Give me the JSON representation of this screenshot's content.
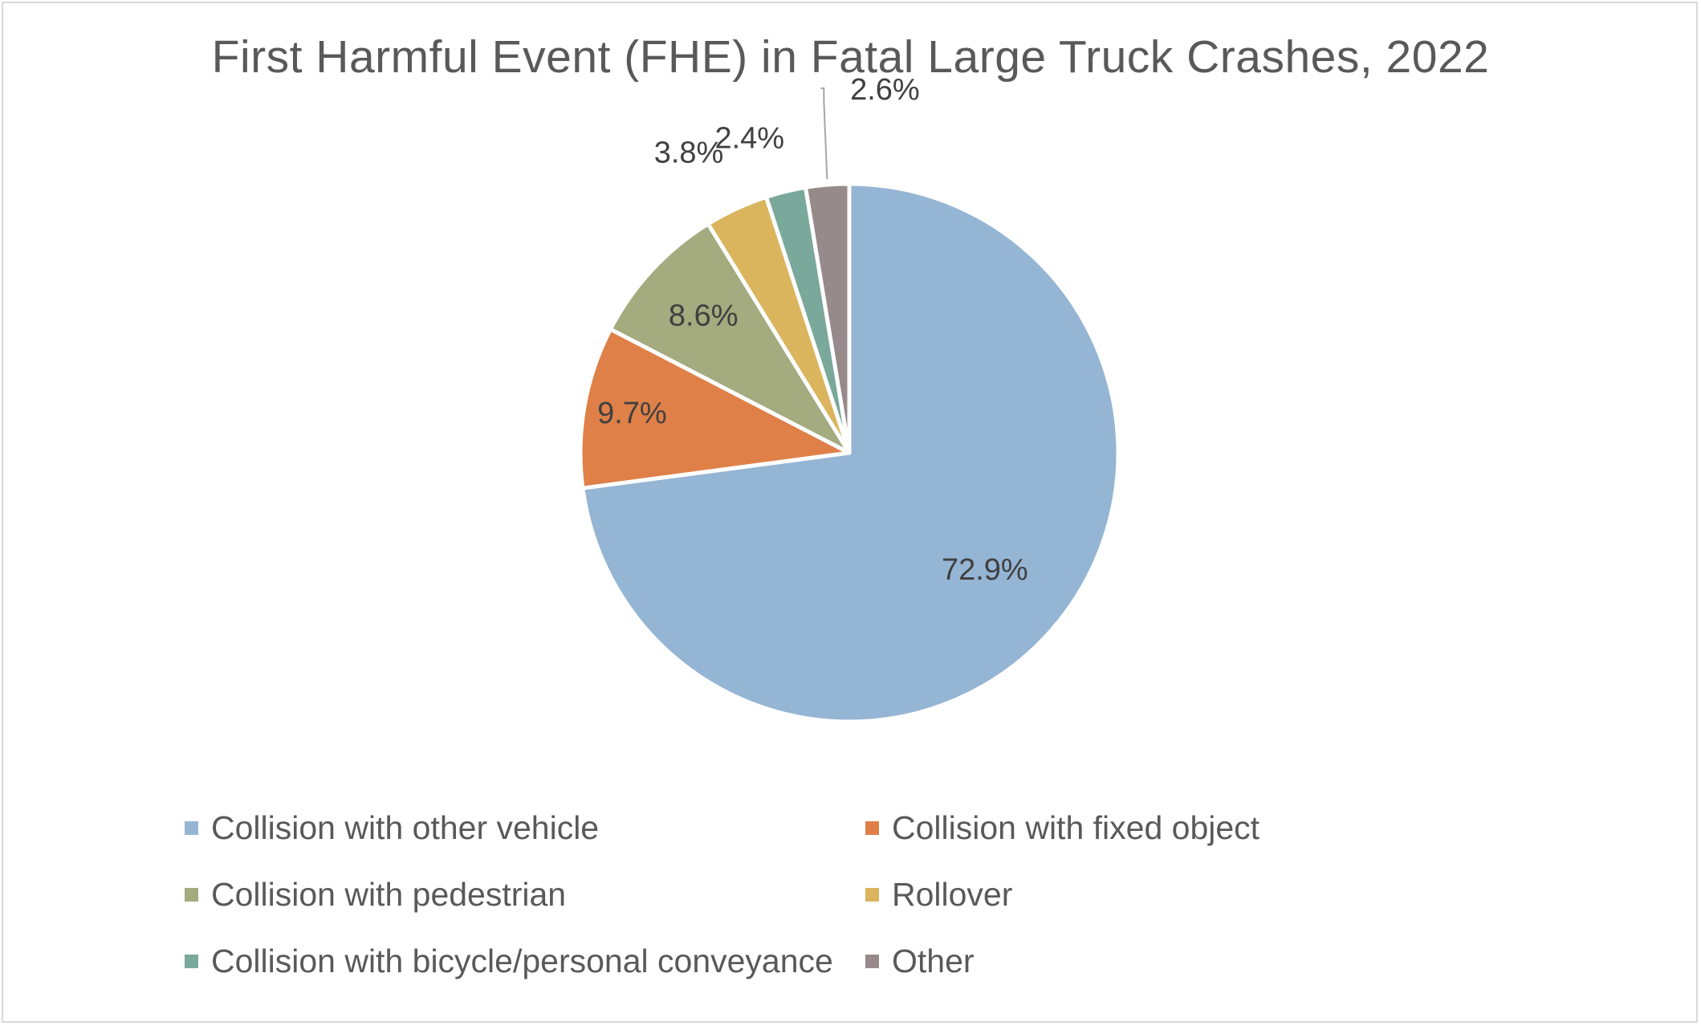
{
  "chart_data": {
    "type": "pie",
    "title": "First Harmful Event (FHE) in Fatal Large Truck Crashes, 2022",
    "slices": [
      {
        "label": "Collision with other vehicle",
        "value": 72.9,
        "display": "72.9%",
        "color": "#95b5d4"
      },
      {
        "label": "Collision with fixed object",
        "value": 9.7,
        "display": "9.7%",
        "color": "#df8048"
      },
      {
        "label": "Collision with pedestrian",
        "value": 8.6,
        "display": "8.6%",
        "color": "#a3ab7f"
      },
      {
        "label": "Rollover",
        "value": 3.8,
        "display": "3.8%",
        "color": "#dab55e"
      },
      {
        "label": "Collision with bicycle/personal conveyance",
        "value": 2.4,
        "display": "2.4%",
        "color": "#7aa89b"
      },
      {
        "label": "Other",
        "value": 2.6,
        "display": "2.6%",
        "color": "#968b8a"
      }
    ],
    "direction": "clockwise",
    "legend_position": "bottom"
  }
}
